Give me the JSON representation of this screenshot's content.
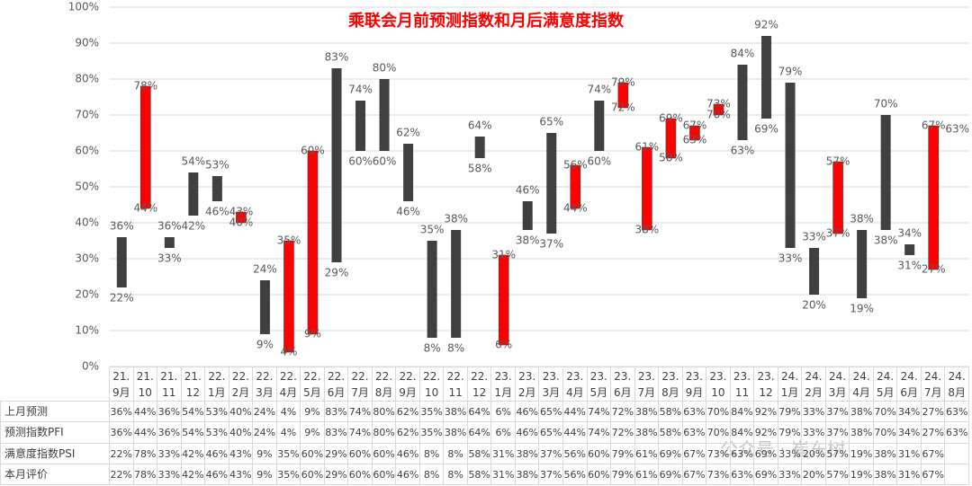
{
  "chart_data": {
    "type": "updown",
    "title": "乘联会月前预测指数和月后满意度指数",
    "categories": [
      "21.9月",
      "21.10月",
      "21.11月",
      "21.12月",
      "22.1月",
      "22.2月",
      "22.3月",
      "22.4月",
      "22.5月",
      "22.6月",
      "22.7月",
      "22.8月",
      "22.9月",
      "22.10月",
      "22.11月",
      "22.12月",
      "23.1月",
      "23.2月",
      "23.3月",
      "23.4月",
      "23.5月",
      "23.6月",
      "23.7月",
      "23.8月",
      "23.9月",
      "23.10月",
      "23.11月",
      "23.12月",
      "24.1月",
      "24.2月",
      "24.3月",
      "24.4月",
      "24.5月",
      "24.6月",
      "24.7月",
      "24.8月"
    ],
    "series": [
      {
        "name": "上月预测",
        "values": [
          36,
          44,
          36,
          54,
          53,
          40,
          24,
          4,
          9,
          83,
          74,
          80,
          62,
          35,
          38,
          64,
          6,
          46,
          65,
          44,
          74,
          72,
          38,
          58,
          63,
          70,
          84,
          92,
          79,
          33,
          37,
          38,
          70,
          34,
          27,
          63
        ],
        "value_labels": [
          "36%",
          "44%",
          "36%",
          "54%",
          "53%",
          "40%",
          "24%",
          "4%",
          "9%",
          "83%",
          "74%",
          "80%",
          "62%",
          "35%",
          "38%",
          "64%",
          "6%",
          "46%",
          "65%",
          "44%",
          "74%",
          "72%",
          "38%",
          "58%",
          "63%",
          "70%",
          "84%",
          "92%",
          "79%",
          "33%",
          "37%",
          "38%",
          "70%",
          "34%",
          "27%",
          "63%"
        ]
      },
      {
        "name": "预测指数PFI",
        "values": [
          36,
          44,
          36,
          54,
          53,
          40,
          24,
          4,
          9,
          83,
          74,
          80,
          62,
          35,
          38,
          64,
          6,
          46,
          65,
          44,
          74,
          72,
          38,
          58,
          63,
          70,
          84,
          92,
          79,
          33,
          37,
          38,
          70,
          34,
          27,
          63
        ],
        "value_labels": [
          "36%",
          "44%",
          "36%",
          "54%",
          "53%",
          "40%",
          "24%",
          "4%",
          "9%",
          "83%",
          "74%",
          "80%",
          "62%",
          "35%",
          "38%",
          "64%",
          "6%",
          "46%",
          "65%",
          "44%",
          "74%",
          "72%",
          "38%",
          "58%",
          "63%",
          "70%",
          "84%",
          "92%",
          "79%",
          "33%",
          "37%",
          "38%",
          "70%",
          "34%",
          "27%",
          "63%"
        ]
      },
      {
        "name": "满意度指数PSI",
        "values": [
          22,
          78,
          33,
          42,
          46,
          43,
          9,
          35,
          60,
          29,
          60,
          60,
          46,
          8,
          8,
          58,
          31,
          38,
          37,
          56,
          60,
          79,
          61,
          69,
          67,
          73,
          63,
          69,
          33,
          20,
          57,
          19,
          38,
          31,
          67,
          null
        ],
        "value_labels": [
          "22%",
          "78%",
          "33%",
          "42%",
          "46%",
          "43%",
          "9%",
          "35%",
          "60%",
          "29%",
          "60%",
          "60%",
          "46%",
          "8%",
          "8%",
          "58%",
          "31%",
          "38%",
          "37%",
          "56%",
          "60%",
          "79%",
          "61%",
          "69%",
          "67%",
          "73%",
          "63%",
          "69%",
          "33%",
          "20%",
          "57%",
          "19%",
          "38%",
          "31%",
          "67%",
          null
        ]
      },
      {
        "name": "本月评价",
        "values": [
          22,
          78,
          33,
          42,
          46,
          43,
          9,
          35,
          60,
          29,
          60,
          60,
          46,
          8,
          8,
          58,
          31,
          38,
          37,
          56,
          60,
          79,
          61,
          69,
          67,
          73,
          63,
          69,
          33,
          20,
          57,
          19,
          38,
          31,
          67,
          null
        ],
        "value_labels": [
          "22%",
          "78%",
          "33%",
          "42%",
          "46%",
          "43%",
          "9%",
          "35%",
          "60%",
          "29%",
          "60%",
          "60%",
          "46%",
          "8%",
          "8%",
          "58%",
          "31%",
          "38%",
          "37%",
          "56%",
          "60%",
          "79%",
          "61%",
          "69%",
          "67%",
          "73%",
          "63%",
          "69%",
          "33%",
          "20%",
          "57%",
          "19%",
          "38%",
          "31%",
          "67%",
          null
        ]
      }
    ],
    "up_color": "#ff0000",
    "down_color": "#404040",
    "ylim": [
      0,
      100
    ],
    "yticks": [
      {
        "value": 0,
        "label": "0%"
      },
      {
        "value": 10,
        "label": "10%"
      },
      {
        "value": 20,
        "label": "20%"
      },
      {
        "value": 30,
        "label": "30%"
      },
      {
        "value": 40,
        "label": "40%"
      },
      {
        "value": 50,
        "label": "50%"
      },
      {
        "value": 60,
        "label": "60%"
      },
      {
        "value": 70,
        "label": "70%"
      },
      {
        "value": 80,
        "label": "80%"
      },
      {
        "value": 90,
        "label": "90%"
      },
      {
        "value": 100,
        "label": "100%"
      }
    ],
    "grid": true
  },
  "watermark": "公众号 · 崔东树"
}
